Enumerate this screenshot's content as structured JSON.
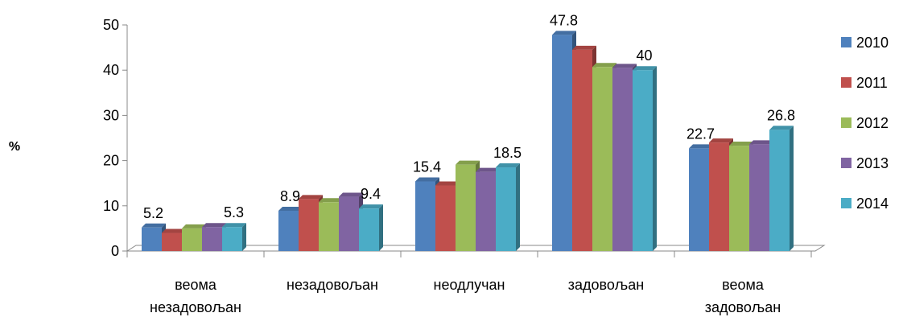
{
  "chart_data": {
    "type": "bar",
    "title": "",
    "ylabel": "%",
    "xlabel": "",
    "ylim": [
      0,
      50
    ],
    "yticks": [
      0,
      10,
      20,
      30,
      40,
      50
    ],
    "grid": false,
    "legend_position": "right",
    "categories": [
      [
        "веома",
        "незадовољан"
      ],
      [
        "незадовољан"
      ],
      [
        "неодлучан"
      ],
      [
        "задовољан"
      ],
      [
        "веома",
        "задовољан"
      ]
    ],
    "series": [
      {
        "name": "2010",
        "color": "#4F81BD",
        "values": [
          5.2,
          8.9,
          15.4,
          47.8,
          22.7
        ]
      },
      {
        "name": "2011",
        "color": "#C0504D",
        "values": [
          4.0,
          11.5,
          14.5,
          44.5,
          24.0
        ]
      },
      {
        "name": "2012",
        "color": "#9BBB59",
        "values": [
          5.0,
          10.8,
          19.1,
          40.7,
          23.3
        ]
      },
      {
        "name": "2013",
        "color": "#8064A2",
        "values": [
          5.3,
          12.0,
          17.5,
          40.5,
          23.6
        ]
      },
      {
        "name": "2014",
        "color": "#4BACC6",
        "values": [
          5.3,
          9.4,
          18.5,
          40.0,
          26.8
        ]
      }
    ],
    "data_labels": [
      {
        "series": 0,
        "category": 0,
        "text": "5.2"
      },
      {
        "series": 4,
        "category": 0,
        "text": "5.3"
      },
      {
        "series": 0,
        "category": 1,
        "text": "8.9"
      },
      {
        "series": 4,
        "category": 1,
        "text": "9.4"
      },
      {
        "series": 0,
        "category": 2,
        "text": "15.4"
      },
      {
        "series": 4,
        "category": 2,
        "text": "18.5"
      },
      {
        "series": 0,
        "category": 3,
        "text": "47.8"
      },
      {
        "series": 4,
        "category": 3,
        "text": "40"
      },
      {
        "series": 0,
        "category": 4,
        "text": "22.7"
      },
      {
        "series": 4,
        "category": 4,
        "text": "26.8"
      }
    ]
  }
}
